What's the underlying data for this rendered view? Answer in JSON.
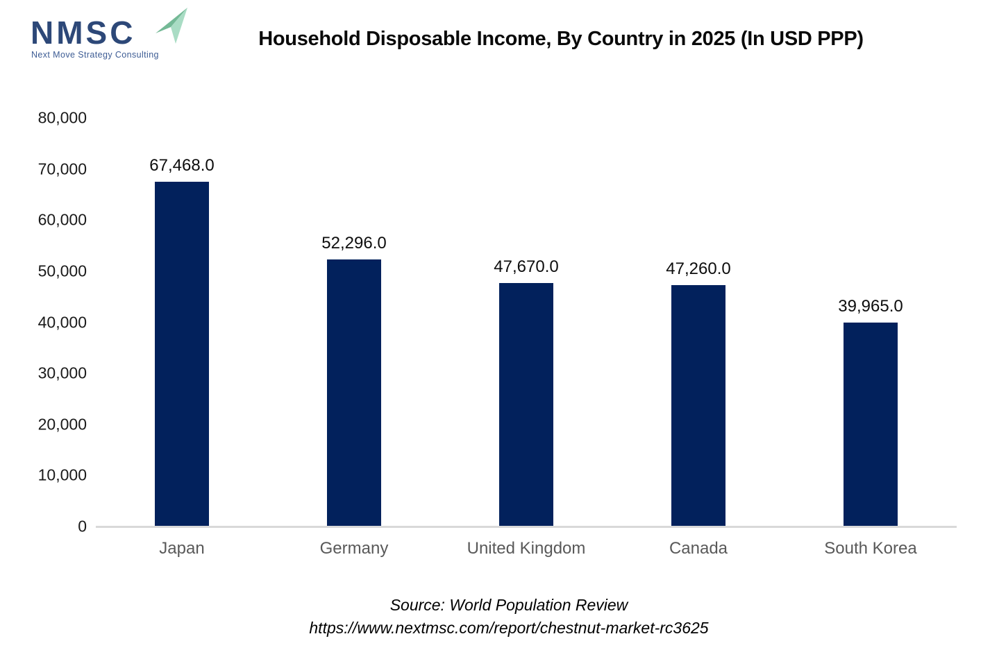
{
  "logo": {
    "acronym": "NMSC",
    "tagline": "Next Move Strategy Consulting",
    "navy": "#2d4878",
    "arrow_green_dark": "#74b996",
    "arrow_green_light": "#a9dcc4"
  },
  "title": "Household Disposable Income, By Country in 2025 (In USD PPP)",
  "source": {
    "line1": "Source: World Population Review",
    "line2": "https://www.nextmsc.com/report/chestnut-market-rc3625"
  },
  "chart_data": {
    "type": "bar",
    "title": "Household Disposable Income, By Country in 2025 (In USD PPP)",
    "categories": [
      "Japan",
      "Germany",
      "United Kingdom",
      "Canada",
      "South Korea"
    ],
    "values": [
      67468.0,
      52296.0,
      47670.0,
      47260.0,
      39965.0
    ],
    "value_labels": [
      "67,468.0",
      "52,296.0",
      "47,670.0",
      "47,260.0",
      "39,965.0"
    ],
    "xlabel": "",
    "ylabel": "",
    "ylim": [
      0,
      80000
    ],
    "ytick_values": [
      0,
      10000,
      20000,
      30000,
      40000,
      50000,
      60000,
      70000,
      80000
    ],
    "ytick_labels": [
      "0",
      "10,000",
      "20,000",
      "30,000",
      "40,000",
      "50,000",
      "60,000",
      "70,000",
      "80,000"
    ],
    "grid": false,
    "legend_position": "none",
    "bar_color": "#02215c",
    "axis_line_color": "#d9d9d9"
  }
}
